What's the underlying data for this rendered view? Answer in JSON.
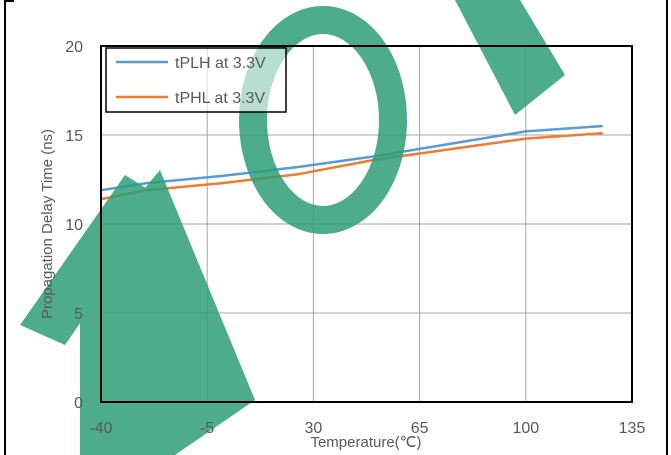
{
  "chart_data": {
    "type": "line",
    "title": "",
    "xlabel": "Temperature(℃)",
    "ylabel": "Propagation Delay Time (ns)",
    "xlim": [
      -40,
      135
    ],
    "ylim": [
      0,
      20
    ],
    "xticks": [
      -40,
      -5,
      30,
      65,
      100,
      135
    ],
    "yticks": [
      0,
      5,
      10,
      15,
      20
    ],
    "x_tick_labels": [
      "-40",
      "-5",
      "30",
      "65",
      "100",
      "135"
    ],
    "y_tick_labels": [
      "0",
      "5",
      "10",
      "15",
      "20"
    ],
    "grid": true,
    "legend_position": "top-left",
    "series": [
      {
        "name": "tPLH at 3.3V",
        "color": "#5b9bd5",
        "x": [
          -40,
          -25,
          0,
          25,
          50,
          75,
          100,
          125
        ],
        "y": [
          11.9,
          12.3,
          12.7,
          13.2,
          13.8,
          14.5,
          15.2,
          15.5
        ]
      },
      {
        "name": "tPHL at 3.3V",
        "color": "#ed7d31",
        "x": [
          -40,
          -25,
          0,
          25,
          50,
          75,
          100,
          125
        ],
        "y": [
          11.4,
          11.9,
          12.3,
          12.8,
          13.6,
          14.2,
          14.8,
          15.1
        ]
      }
    ]
  },
  "watermark": {
    "text": "FOI",
    "color": "#2e9e78"
  }
}
